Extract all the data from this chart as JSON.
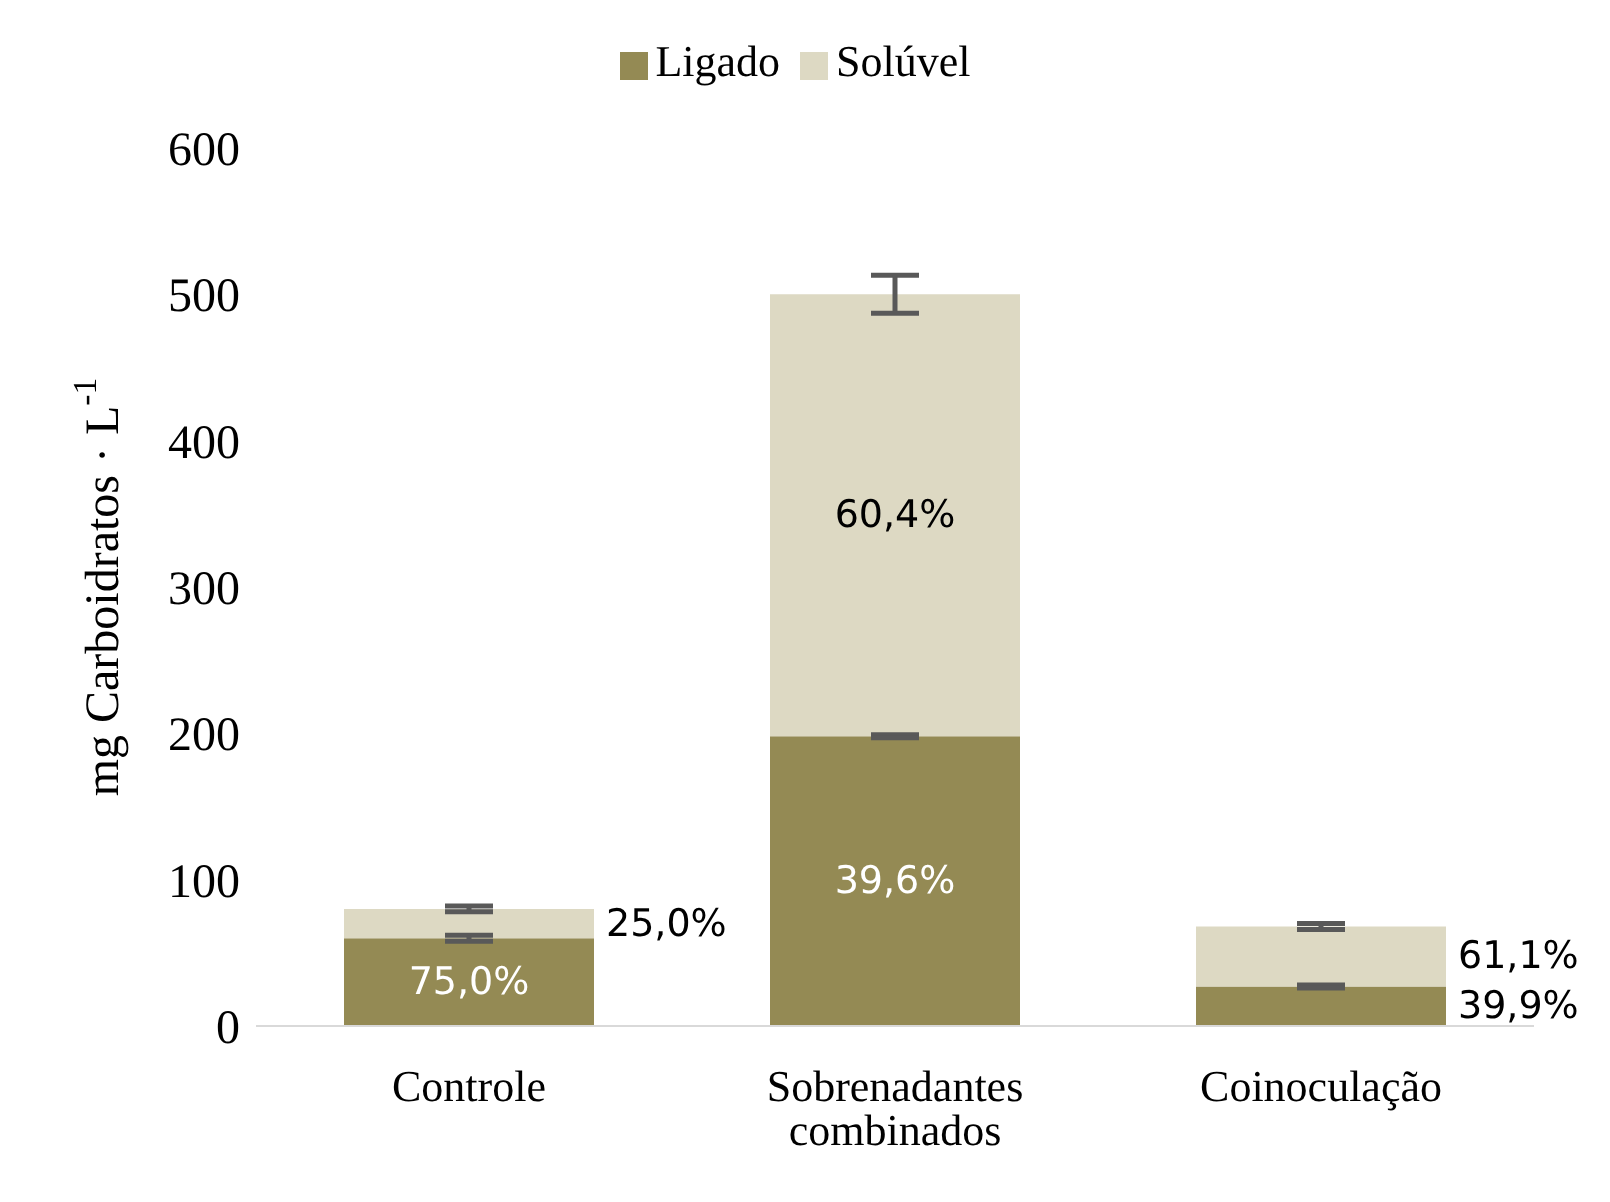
{
  "chart_data": {
    "type": "bar",
    "stacked": true,
    "ylabel": "mg Carboidratos · L$^{-1}$",
    "categories": [
      "Controle",
      "Sobrenadantes combinados",
      "Coinoculação"
    ],
    "series": [
      {
        "name": "Ligado",
        "color": "#948a54",
        "values": [
          60,
          198,
          27
        ],
        "errors": [
          2,
          1,
          1
        ]
      },
      {
        "name": "Solúvel",
        "color": "#ddd9c3",
        "values": [
          20,
          302,
          41
        ],
        "errors": [
          2,
          13,
          2
        ]
      }
    ],
    "annotations": [
      "75,0%",
      "39,6%",
      "39,9%",
      "25,0%",
      "60,4%",
      "61,1%"
    ],
    "ylim": [
      0,
      600
    ],
    "yticks": [
      0,
      100,
      200,
      300,
      400,
      500,
      600
    ],
    "grid": false,
    "legend": "top"
  }
}
